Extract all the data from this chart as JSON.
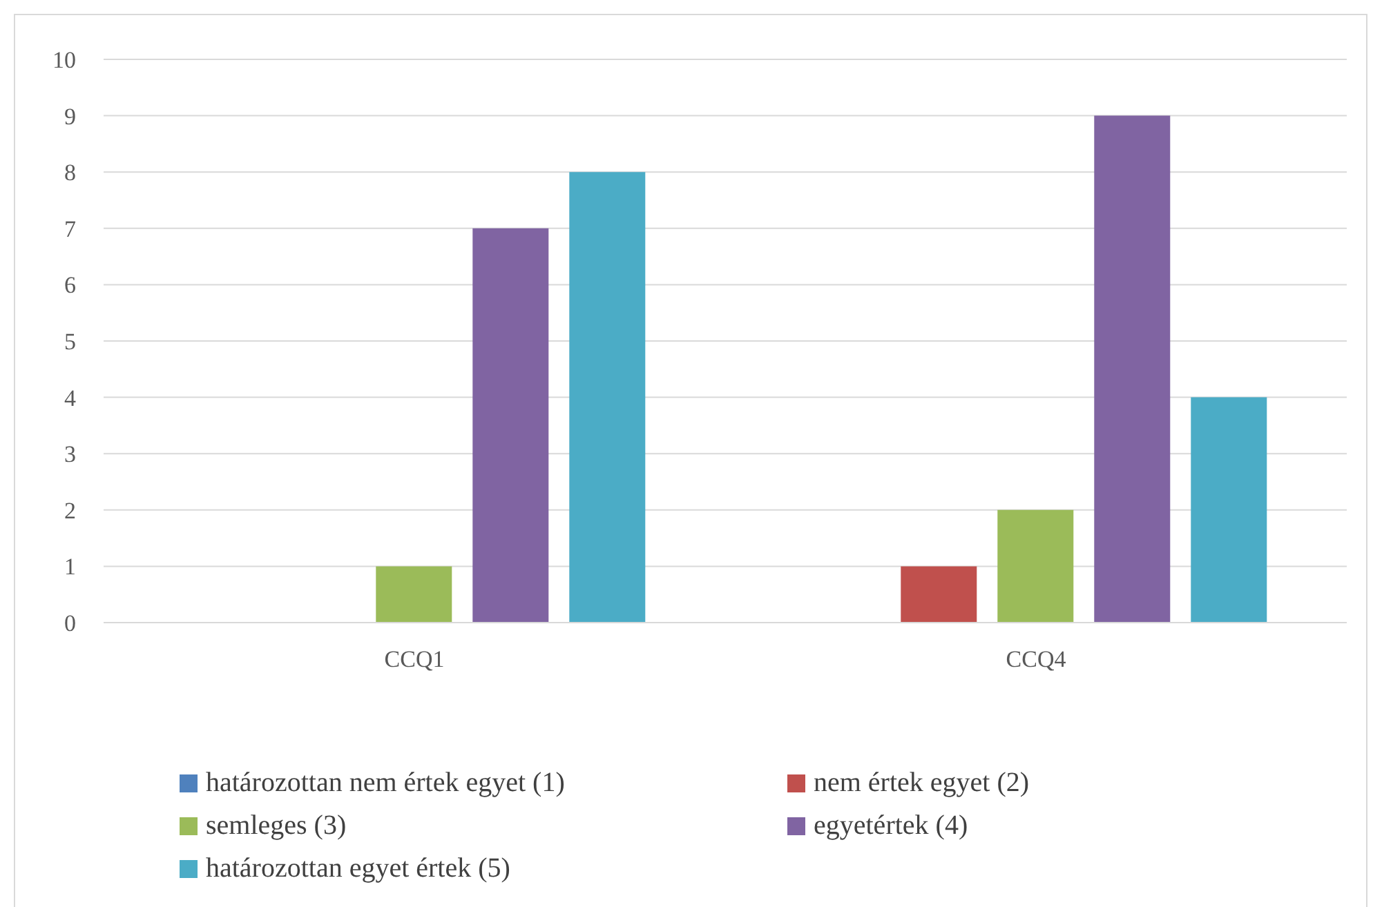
{
  "chart_data": {
    "type": "bar",
    "categories": [
      "CCQ1",
      "CCQ4"
    ],
    "series": [
      {
        "name": "határozottan nem értek egyet (1)",
        "color": "#4f81bd",
        "values": [
          0,
          0
        ]
      },
      {
        "name": "nem értek egyet (2)",
        "color": "#c0504d",
        "values": [
          0,
          1
        ]
      },
      {
        "name": "semleges (3)",
        "color": "#9bbb59",
        "values": [
          1,
          2
        ]
      },
      {
        "name": "egyetértek (4)",
        "color": "#8064a2",
        "values": [
          7,
          9
        ]
      },
      {
        "name": "határozottan egyet értek (5)",
        "color": "#4bacc6",
        "values": [
          8,
          4
        ]
      }
    ],
    "ylim": [
      0,
      10
    ],
    "yticks": [
      0,
      1,
      2,
      3,
      4,
      5,
      6,
      7,
      8,
      9,
      10
    ],
    "grid": "y",
    "legend": "bottom"
  }
}
